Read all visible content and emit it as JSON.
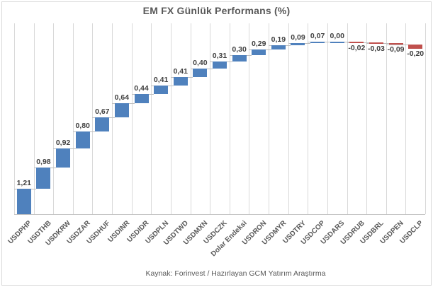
{
  "chart_data": {
    "type": "bar",
    "subtype": "waterfall",
    "title": "EM FX Günlük Performans (%)",
    "source_note": "Kaynak: Forinvest / Hazırlayan GCM Yatırım Araştırma",
    "categories": [
      "USDPHP",
      "USDTHB",
      "USDKRW",
      "USDZAR",
      "USDHUF",
      "USDINR",
      "USDIDR",
      "USDPLN",
      "USDTWD",
      "USDMXN",
      "USDCZK",
      "Dolar Endeksi",
      "USDRON",
      "USDMYR",
      "USDTRY",
      "USDCOP",
      "USDARS",
      "USDRUB",
      "USDBRL",
      "USDPEN",
      "USDCLP"
    ],
    "values": [
      1.21,
      0.98,
      0.92,
      0.8,
      0.67,
      0.64,
      0.44,
      0.41,
      0.41,
      0.4,
      0.31,
      0.3,
      0.29,
      0.19,
      0.09,
      0.07,
      0.0,
      -0.02,
      -0.03,
      -0.09,
      -0.2
    ],
    "value_labels": [
      "1,21",
      "0,98",
      "0,92",
      "0,80",
      "0,67",
      "0,64",
      "0,44",
      "0,41",
      "0,41",
      "0,40",
      "0,31",
      "0,30",
      "0,29",
      "0,19",
      "0,09",
      "0,07",
      "0,00",
      "-0,02",
      "-0,03",
      "-0,09",
      "-0,20"
    ],
    "positive_color": "#4F81BD",
    "negative_color": "#C0504D",
    "gridline_color": "#D9D9D9",
    "connector_color": "#BFBFBF",
    "value_label_color": "#404040",
    "axis_label_color": "#595959",
    "ylim": [
      0,
      9
    ],
    "grid": "vertical-only",
    "legend": "none",
    "xlabel": "",
    "ylabel": ""
  }
}
